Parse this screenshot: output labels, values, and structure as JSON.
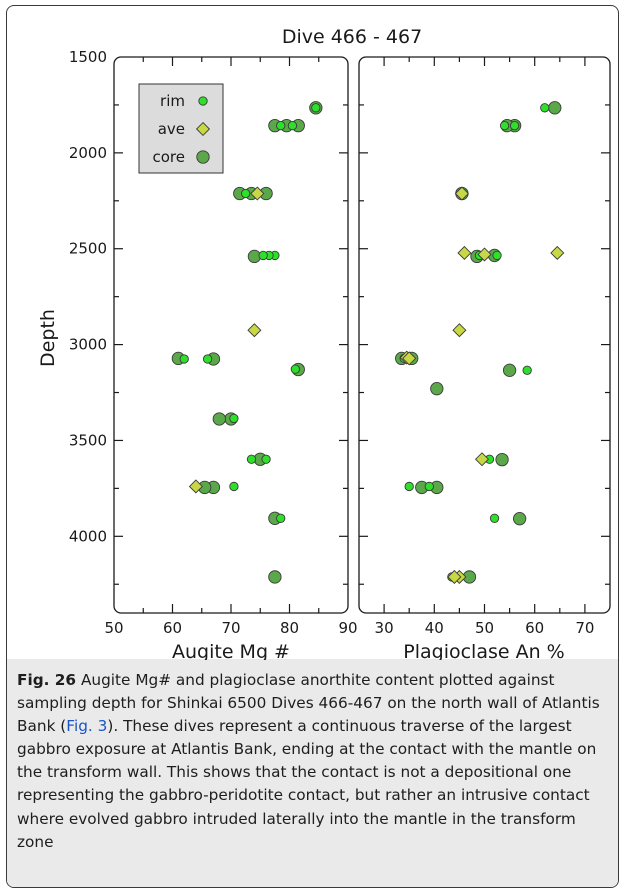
{
  "chart_data": {
    "type": "scatter",
    "title": "Dive 466 - 467",
    "ylabel": "Depth",
    "ylim": [
      1500,
      4400
    ],
    "yticks": [
      1500,
      2000,
      2500,
      3000,
      3500,
      4000
    ],
    "y_inverted": true,
    "legend": {
      "placement": "top-left of first panel",
      "entries": [
        {
          "label": "rim",
          "marker": "small-circle",
          "color": "#2ee02a"
        },
        {
          "label": "ave",
          "marker": "diamond",
          "color": "#c8d845"
        },
        {
          "label": "core",
          "marker": "large-circle",
          "color": "#5aa84a"
        }
      ]
    },
    "panels": [
      {
        "xlabel": "Augite Mg #",
        "xlim": [
          50,
          90
        ],
        "xticks": [
          50,
          60,
          70,
          80,
          90
        ],
        "series": [
          {
            "name": "rim",
            "points": [
              [
                84.5,
                1765
              ],
              [
                80.5,
                1858
              ],
              [
                78.5,
                1858
              ],
              [
                72.5,
                2212
              ],
              [
                77.5,
                2535
              ],
              [
                76.5,
                2535
              ],
              [
                75.5,
                2535
              ],
              [
                62,
                3075
              ],
              [
                66,
                3075
              ],
              [
                81,
                3128
              ],
              [
                70.5,
                3385
              ],
              [
                73.5,
                3598
              ],
              [
                76,
                3598
              ],
              [
                70.5,
                3740
              ],
              [
                78.5,
                3906
              ]
            ]
          },
          {
            "name": "ave",
            "points": [
              [
                74.5,
                2212
              ],
              [
                74,
                2925
              ],
              [
                64,
                3740
              ]
            ]
          },
          {
            "name": "core",
            "points": [
              [
                84.5,
                1765
              ],
              [
                81.5,
                1858
              ],
              [
                79.5,
                1858
              ],
              [
                77.5,
                1858
              ],
              [
                76,
                2212
              ],
              [
                73.5,
                2212
              ],
              [
                71.5,
                2212
              ],
              [
                74,
                2540
              ],
              [
                61,
                3072
              ],
              [
                67,
                3075
              ],
              [
                81.5,
                3130
              ],
              [
                70,
                3388
              ],
              [
                68,
                3388
              ],
              [
                75,
                3598
              ],
              [
                67,
                3745
              ],
              [
                65.5,
                3745
              ],
              [
                77.5,
                3906
              ],
              [
                77.5,
                4212
              ]
            ]
          }
        ]
      },
      {
        "xlabel": "Plagioclase An %",
        "xlim": [
          25,
          75
        ],
        "xticks": [
          30,
          40,
          50,
          60,
          70
        ],
        "series": [
          {
            "name": "rim",
            "points": [
              [
                62,
                1765
              ],
              [
                56,
                1858
              ],
              [
                54,
                1858
              ],
              [
                52.5,
                2535
              ],
              [
                49,
                2535
              ],
              [
                34,
                3072
              ],
              [
                58.5,
                3134
              ],
              [
                51,
                3598
              ],
              [
                35,
                3740
              ],
              [
                39,
                3740
              ],
              [
                52,
                3906
              ],
              [
                43.5,
                4212
              ]
            ]
          },
          {
            "name": "ave",
            "points": [
              [
                45.5,
                2212
              ],
              [
                46,
                2522
              ],
              [
                50,
                2530
              ],
              [
                64.5,
                2522
              ],
              [
                45,
                2925
              ],
              [
                34.5,
                3068
              ],
              [
                35,
                3072
              ],
              [
                49.5,
                3598
              ],
              [
                45,
                4212
              ],
              [
                44,
                4212
              ]
            ]
          },
          {
            "name": "core",
            "points": [
              [
                64,
                1765
              ],
              [
                56,
                1858
              ],
              [
                54.5,
                1858
              ],
              [
                45.5,
                2212
              ],
              [
                48.5,
                2540
              ],
              [
                52,
                2535
              ],
              [
                33.5,
                3072
              ],
              [
                35.5,
                3072
              ],
              [
                55,
                3134
              ],
              [
                40.5,
                3230
              ],
              [
                53.5,
                3600
              ],
              [
                37.5,
                3745
              ],
              [
                40.5,
                3745
              ],
              [
                57,
                3908
              ],
              [
                47,
                4212
              ]
            ]
          }
        ]
      }
    ]
  },
  "caption": {
    "figure_label": "Fig. 26",
    "text_before_ref": " Augite Mg# and plagioclase anorthite content plotted against sampling depth for Shinkai 6500 Dives 466-467 on the north wall of Atlantis Bank (",
    "ref": "Fig. 3",
    "text_after_ref": "). These dives represent a continuous traverse of the largest gabbro exposure at Atlantis Bank, ending at the contact with the mantle on the transform wall. This shows that the contact is not a depositional one representing the gabbro-peridotite contact, but rather an intrusive contact where evolved gabbro intruded laterally into the mantle in the transform zone"
  },
  "colors": {
    "rim": "#2ee02a",
    "ave": "#c8d845",
    "core": "#5aa84a",
    "caption_background": "#eaeaea",
    "ref_link": "#1a55c4"
  }
}
